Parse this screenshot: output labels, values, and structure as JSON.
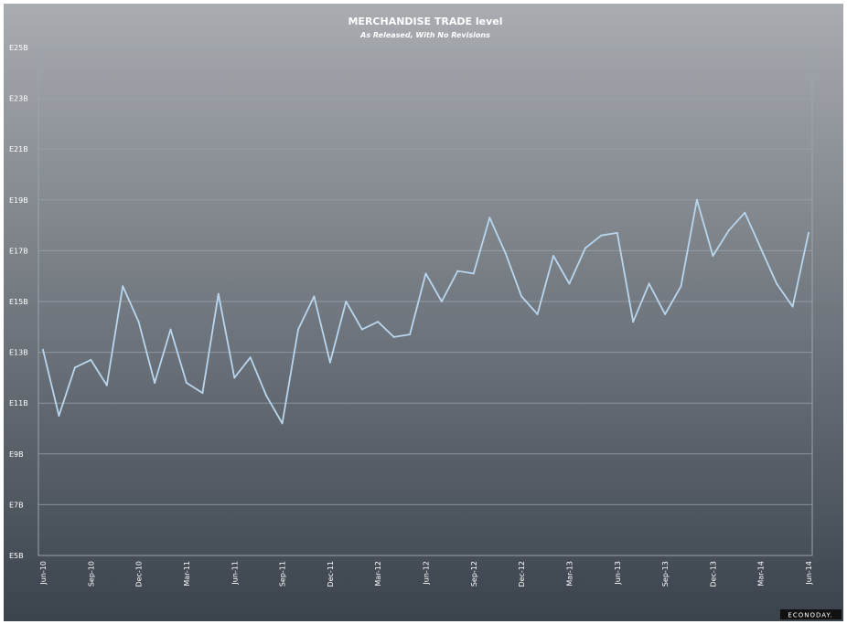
{
  "title": "MERCHANDISE TRADE level",
  "subtitle": "As Released, With No Revisions",
  "logo": "ECONODAY.",
  "colors": {
    "bg_top": "#a9acb1",
    "bg_bottom": "#3a434c",
    "line": "#b8d6ee",
    "grid": "#9aa4ad"
  },
  "chart_data": {
    "type": "line",
    "title": "MERCHANDISE TRADE level",
    "subtitle": "As Released, With No Revisions",
    "xlabel": "",
    "ylabel": "",
    "ylim": [
      5,
      25
    ],
    "grid": true,
    "legend": "none",
    "y_ticks": [
      "E5B",
      "E7B",
      "E9B",
      "E11B",
      "E13B",
      "E15B",
      "E17B",
      "E19B",
      "E21B",
      "E23B",
      "E25B"
    ],
    "y_tick_values": [
      5,
      7,
      9,
      11,
      13,
      15,
      17,
      19,
      21,
      23,
      25
    ],
    "x_ticks": [
      "Jun-10",
      "Sep-10",
      "Dec-10",
      "Mar-11",
      "Jun-11",
      "Sep-11",
      "Dec-11",
      "Mar-12",
      "Jun-12",
      "Sep-12",
      "Dec-12",
      "Mar-13",
      "Jun-13",
      "Sep-13",
      "Dec-13",
      "Mar-14",
      "Jun-14"
    ],
    "x": [
      "Jun-10",
      "Jul-10",
      "Aug-10",
      "Sep-10",
      "Oct-10",
      "Nov-10",
      "Dec-10",
      "Jan-11",
      "Feb-11",
      "Mar-11",
      "Apr-11",
      "May-11",
      "Jun-11",
      "Jul-11",
      "Aug-11",
      "Sep-11",
      "Oct-11",
      "Nov-11",
      "Dec-11",
      "Jan-12",
      "Feb-12",
      "Mar-12",
      "Apr-12",
      "May-12",
      "Jun-12",
      "Jul-12",
      "Aug-12",
      "Sep-12",
      "Oct-12",
      "Nov-12",
      "Dec-12",
      "Jan-13",
      "Feb-13",
      "Mar-13",
      "Apr-13",
      "May-13",
      "Jun-13",
      "Jul-13",
      "Aug-13",
      "Sep-13",
      "Oct-13",
      "Nov-13",
      "Dec-13",
      "Jan-14",
      "Feb-14",
      "Mar-14",
      "Apr-14",
      "May-14",
      "Jun-14"
    ],
    "series": [
      {
        "values": [
          13.1,
          10.5,
          12.4,
          12.7,
          11.7,
          15.6,
          14.2,
          11.8,
          13.9,
          11.8,
          11.4,
          15.3,
          12.0,
          12.8,
          11.3,
          10.2,
          13.9,
          15.2,
          12.6,
          15.0,
          13.9,
          14.2,
          13.6,
          13.7,
          16.1,
          15.0,
          16.2,
          16.1,
          18.3,
          16.9,
          15.2,
          14.5,
          16.8,
          15.7,
          17.1,
          17.6,
          17.7,
          14.2,
          15.7,
          14.5,
          15.6,
          19.0,
          16.8,
          17.8,
          18.5,
          17.1,
          15.7,
          14.8,
          17.7
        ]
      }
    ]
  }
}
